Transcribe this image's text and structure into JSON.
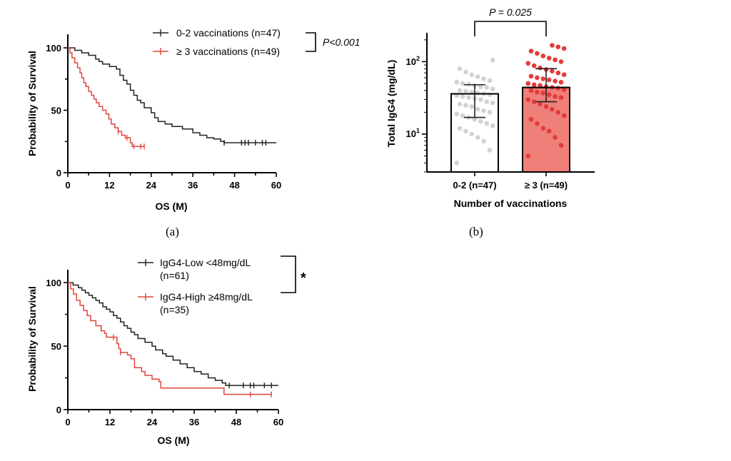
{
  "chart_data": [
    {
      "id": "a",
      "type": "line",
      "subtype": "kaplan-meier",
      "panel_label": "(a)",
      "xlabel": "OS (M)",
      "ylabel": "Probability of Survival",
      "xlim": [
        0,
        60
      ],
      "ylim": [
        0,
        100
      ],
      "xticks": [
        "0",
        "12",
        "24",
        "36",
        "48",
        "60"
      ],
      "yticks": [
        "0",
        "50",
        "100"
      ],
      "pvalue_label": "P<0.001",
      "legend_position": "top-right",
      "series": [
        {
          "name": "0-2 vaccinations (n=47)",
          "color": "#222222",
          "steps": [
            [
              0,
              100
            ],
            [
              2,
              98
            ],
            [
              4,
              96
            ],
            [
              6,
              94
            ],
            [
              8,
              91
            ],
            [
              9,
              89
            ],
            [
              10,
              87
            ],
            [
              12,
              85
            ],
            [
              14,
              83
            ],
            [
              15,
              78
            ],
            [
              16,
              74
            ],
            [
              17,
              71
            ],
            [
              18,
              66
            ],
            [
              19,
              62
            ],
            [
              20,
              58
            ],
            [
              21,
              56
            ],
            [
              22,
              52
            ],
            [
              24,
              48
            ],
            [
              25,
              44
            ],
            [
              26,
              41
            ],
            [
              28,
              39
            ],
            [
              30,
              37
            ],
            [
              33,
              35
            ],
            [
              36,
              32
            ],
            [
              38,
              30
            ],
            [
              40,
              28
            ],
            [
              42,
              27
            ],
            [
              44,
              25
            ],
            [
              45,
              24
            ],
            [
              60,
              24
            ]
          ],
          "censored": [
            [
              45,
              24
            ],
            [
              50,
              24
            ],
            [
              51,
              24
            ],
            [
              52,
              24
            ],
            [
              54,
              24
            ],
            [
              56,
              24
            ],
            [
              57,
              24
            ]
          ]
        },
        {
          "name": "≥ 3 vaccinations (n=49)",
          "color": "#e0463c",
          "steps": [
            [
              0,
              100
            ],
            [
              0.6,
              96
            ],
            [
              1.2,
              92
            ],
            [
              2,
              88
            ],
            [
              2.8,
              84
            ],
            [
              3.5,
              80
            ],
            [
              4,
              76
            ],
            [
              4.6,
              72
            ],
            [
              5.2,
              69
            ],
            [
              6,
              65
            ],
            [
              6.8,
              62
            ],
            [
              7.5,
              59
            ],
            [
              8.2,
              56
            ],
            [
              9,
              53
            ],
            [
              10,
              50
            ],
            [
              11,
              47
            ],
            [
              11.8,
              43
            ],
            [
              12.5,
              39
            ],
            [
              13.5,
              36
            ],
            [
              14.5,
              33
            ],
            [
              15.5,
              30
            ],
            [
              16.5,
              28
            ],
            [
              18,
              24
            ],
            [
              18.5,
              21
            ],
            [
              22,
              21
            ]
          ],
          "censored": [
            [
              14.5,
              33
            ],
            [
              17,
              28
            ],
            [
              19,
              21
            ],
            [
              21,
              21
            ],
            [
              22,
              21
            ]
          ]
        }
      ]
    },
    {
      "id": "b",
      "type": "bar",
      "panel_label": "(b)",
      "title": "P = 0.025",
      "xlabel": "Number of vaccinations",
      "ylabel": "Total IgG4 (mg/dL)",
      "yscale": "log",
      "ylim": [
        3,
        250
      ],
      "yticks": [
        {
          "base": "10",
          "exp": "1",
          "value": 10
        },
        {
          "base": "10",
          "exp": "2",
          "value": 100
        }
      ],
      "categories": [
        "0-2 (n=47)",
        "≥ 3 (n=49)"
      ],
      "series": [
        {
          "name": "mean",
          "values": [
            36,
            44
          ],
          "error_low": [
            17,
            28
          ],
          "error_high": [
            48,
            80
          ],
          "fill": [
            "#ffffff",
            "#ef8079"
          ],
          "point_color": [
            "#d2d2d2",
            "#e33b3b"
          ],
          "points": [
            [
              4,
              6,
              8,
              9,
              10,
              11,
              12,
              13,
              14,
              15,
              16,
              17,
              18,
              19,
              20,
              21,
              22,
              24,
              25,
              26,
              27,
              28,
              30,
              31,
              32,
              33,
              34,
              35,
              36,
              37,
              38,
              39,
              40,
              42,
              44,
              45,
              47,
              49,
              50,
              52,
              55,
              58,
              62,
              66,
              72,
              80,
              105
            ],
            [
              5,
              7,
              9,
              11,
              12,
              14,
              16,
              18,
              20,
              22,
              24,
              26,
              28,
              30,
              32,
              33,
              35,
              37,
              38,
              40,
              41,
              43,
              44,
              45,
              47,
              48,
              50,
              52,
              54,
              56,
              58,
              60,
              63,
              66,
              70,
              74,
              78,
              82,
              88,
              95,
              100,
              106,
              112,
              120,
              130,
              140,
              152,
              160,
              168
            ]
          ]
        }
      ]
    },
    {
      "id": "c",
      "type": "line",
      "subtype": "kaplan-meier",
      "panel_label": "",
      "xlabel": "OS (M)",
      "ylabel": "Probability of Survival",
      "xlim": [
        0,
        60
      ],
      "ylim": [
        0,
        100
      ],
      "xticks": [
        "0",
        "12",
        "24",
        "36",
        "48",
        "60"
      ],
      "yticks": [
        "0",
        "50",
        "100"
      ],
      "pvalue_label": "*",
      "legend_position": "top-right",
      "series": [
        {
          "name": "IgG4-Low <48mg/dL",
          "n_label": "(n=61)",
          "color": "#222222",
          "steps": [
            [
              0,
              100
            ],
            [
              1.5,
              98
            ],
            [
              3,
              96
            ],
            [
              4,
              94
            ],
            [
              5,
              92
            ],
            [
              6,
              90
            ],
            [
              7,
              88
            ],
            [
              8,
              86
            ],
            [
              9,
              84
            ],
            [
              10,
              81
            ],
            [
              11,
              79
            ],
            [
              12,
              77
            ],
            [
              13,
              74
            ],
            [
              14,
              72
            ],
            [
              15,
              69
            ],
            [
              16,
              66
            ],
            [
              17,
              64
            ],
            [
              18,
              61
            ],
            [
              19,
              59
            ],
            [
              20,
              56
            ],
            [
              22,
              53
            ],
            [
              24,
              50
            ],
            [
              25,
              47
            ],
            [
              27,
              44
            ],
            [
              28,
              42
            ],
            [
              30,
              39
            ],
            [
              32,
              36
            ],
            [
              34,
              33
            ],
            [
              36,
              30
            ],
            [
              38,
              28
            ],
            [
              40,
              25
            ],
            [
              42,
              23
            ],
            [
              44,
              21
            ],
            [
              45,
              19
            ],
            [
              60,
              19
            ]
          ],
          "censored": [
            [
              46,
              19
            ],
            [
              50,
              19
            ],
            [
              52,
              19
            ],
            [
              53,
              19
            ],
            [
              56,
              19
            ],
            [
              58,
              19
            ]
          ]
        },
        {
          "name": "IgG4-High ≥48mg/dL",
          "n_label": "(n=35)",
          "color": "#e0463c",
          "steps": [
            [
              0,
              100
            ],
            [
              0.8,
              95
            ],
            [
              1.6,
              91
            ],
            [
              2.5,
              86
            ],
            [
              3.5,
              82
            ],
            [
              4.5,
              78
            ],
            [
              5.5,
              74
            ],
            [
              6.5,
              70
            ],
            [
              8,
              66
            ],
            [
              9.5,
              62
            ],
            [
              10.5,
              60
            ],
            [
              11,
              57
            ],
            [
              13,
              57
            ],
            [
              14,
              52
            ],
            [
              14.5,
              48
            ],
            [
              15,
              45
            ],
            [
              17,
              43
            ],
            [
              18,
              40
            ],
            [
              19,
              33
            ],
            [
              21,
              30
            ],
            [
              22,
              27
            ],
            [
              24,
              24
            ],
            [
              26,
              22
            ],
            [
              26.5,
              17
            ],
            [
              44,
              17
            ],
            [
              44.5,
              12
            ],
            [
              58,
              12
            ]
          ],
          "censored": [
            [
              13,
              57
            ],
            [
              15,
              45
            ],
            [
              52,
              12
            ],
            [
              58,
              12
            ]
          ]
        }
      ]
    }
  ]
}
